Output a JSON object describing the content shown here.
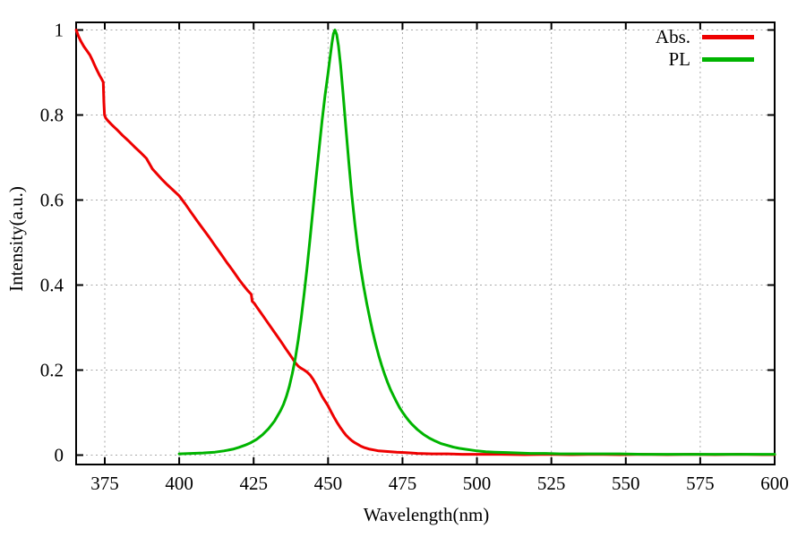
{
  "figure": {
    "background": "#ffffff",
    "axes": {
      "xlabel": "Wavelength(nm)",
      "ylabel": "Intensity(a.u.)"
    },
    "legend": {
      "entries": [
        {
          "label": "Abs.",
          "color": "#ee0000"
        },
        {
          "label": "PL",
          "color": "#00b400"
        }
      ]
    },
    "grid_color": "#a8a8a8",
    "border_color": "#000000"
  },
  "chart_data": {
    "type": "line",
    "title": "",
    "xlabel": "Wavelength(nm)",
    "ylabel": "Intensity(a.u.)",
    "xlim": [
      365.4,
      600
    ],
    "ylim": [
      0,
      1
    ],
    "grid": true,
    "legend_position": "top-right-inside",
    "xticks": {
      "values": [
        375,
        400,
        425,
        450,
        475,
        500,
        525,
        550,
        575,
        600
      ],
      "labels": [
        "375",
        "400",
        "425",
        "450",
        "475",
        "500",
        "525",
        "550",
        "575",
        "600"
      ]
    },
    "yticks": {
      "values": [
        0,
        0.2,
        0.4,
        0.6,
        0.8,
        1
      ],
      "labels": [
        "0",
        "0.2",
        "0.4",
        "0.6",
        "0.8",
        "1"
      ]
    },
    "series": [
      {
        "name": "Abs.",
        "color": "#ee0000",
        "points": [
          [
            365.4,
            1.0
          ],
          [
            366.2,
            0.985
          ],
          [
            367,
            0.973
          ],
          [
            368,
            0.961
          ],
          [
            369,
            0.951
          ],
          [
            370,
            0.941
          ],
          [
            370.8,
            0.93
          ],
          [
            371.6,
            0.917
          ],
          [
            372.4,
            0.905
          ],
          [
            373.2,
            0.894
          ],
          [
            374.0,
            0.884
          ],
          [
            374.5,
            0.877
          ],
          [
            374.7,
            0.83
          ],
          [
            374.9,
            0.8
          ],
          [
            375.3,
            0.793
          ],
          [
            376,
            0.787
          ],
          [
            377.5,
            0.776
          ],
          [
            379,
            0.766
          ],
          [
            381,
            0.752
          ],
          [
            383,
            0.739
          ],
          [
            385,
            0.725
          ],
          [
            387,
            0.712
          ],
          [
            389,
            0.698
          ],
          [
            391,
            0.673
          ],
          [
            394,
            0.65
          ],
          [
            396,
            0.636
          ],
          [
            398,
            0.623
          ],
          [
            400,
            0.61
          ],
          [
            402,
            0.591
          ],
          [
            404,
            0.571
          ],
          [
            406,
            0.551
          ],
          [
            408,
            0.532
          ],
          [
            410,
            0.513
          ],
          [
            412,
            0.493
          ],
          [
            414,
            0.473
          ],
          [
            416,
            0.453
          ],
          [
            418,
            0.434
          ],
          [
            420,
            0.414
          ],
          [
            421.5,
            0.4
          ],
          [
            423,
            0.387
          ],
          [
            424.2,
            0.378
          ],
          [
            424.5,
            0.362
          ],
          [
            425.2,
            0.357
          ],
          [
            426,
            0.349
          ],
          [
            427,
            0.339
          ],
          [
            428,
            0.329
          ],
          [
            430,
            0.309
          ],
          [
            432,
            0.289
          ],
          [
            434,
            0.269
          ],
          [
            436,
            0.248
          ],
          [
            437,
            0.238
          ],
          [
            438,
            0.228
          ],
          [
            439,
            0.217
          ],
          [
            440,
            0.209
          ],
          [
            441,
            0.204
          ],
          [
            442,
            0.2
          ],
          [
            443,
            0.195
          ],
          [
            444,
            0.188
          ],
          [
            445,
            0.178
          ],
          [
            446,
            0.166
          ],
          [
            447,
            0.152
          ],
          [
            448,
            0.138
          ],
          [
            449,
            0.127
          ],
          [
            450,
            0.116
          ],
          [
            451,
            0.102
          ],
          [
            452,
            0.089
          ],
          [
            453,
            0.077
          ],
          [
            454,
            0.066
          ],
          [
            455,
            0.056
          ],
          [
            456,
            0.047
          ],
          [
            457,
            0.04
          ],
          [
            458,
            0.034
          ],
          [
            459,
            0.029
          ],
          [
            460,
            0.025
          ],
          [
            461,
            0.021
          ],
          [
            462,
            0.018
          ],
          [
            463,
            0.016
          ],
          [
            464,
            0.014
          ],
          [
            465.5,
            0.012
          ],
          [
            467,
            0.01
          ],
          [
            469,
            0.009
          ],
          [
            471,
            0.008
          ],
          [
            473,
            0.007
          ],
          [
            475.5,
            0.006
          ],
          [
            478,
            0.005
          ],
          [
            480,
            0.004
          ],
          [
            485,
            0.003
          ],
          [
            490,
            0.003
          ],
          [
            495,
            0.002
          ],
          [
            500,
            0.002
          ],
          [
            508,
            0.002
          ],
          [
            516,
            0.001
          ],
          [
            524,
            0.002
          ],
          [
            532,
            0.001
          ],
          [
            540,
            0.002
          ],
          [
            548,
            0.001
          ],
          [
            556,
            0.002
          ],
          [
            564,
            0.001
          ],
          [
            572,
            0.002
          ],
          [
            580,
            0.001
          ],
          [
            588,
            0.002
          ],
          [
            596,
            0.001
          ],
          [
            600,
            0.001
          ]
        ]
      },
      {
        "name": "PL",
        "color": "#00b400",
        "points": [
          [
            400,
            0.003
          ],
          [
            404,
            0.004
          ],
          [
            408,
            0.005
          ],
          [
            412,
            0.007
          ],
          [
            415,
            0.01
          ],
          [
            418,
            0.014
          ],
          [
            420,
            0.018
          ],
          [
            422,
            0.023
          ],
          [
            424,
            0.029
          ],
          [
            426,
            0.037
          ],
          [
            428,
            0.048
          ],
          [
            430,
            0.062
          ],
          [
            432,
            0.08
          ],
          [
            434,
            0.104
          ],
          [
            435,
            0.119
          ],
          [
            436,
            0.138
          ],
          [
            437,
            0.162
          ],
          [
            438,
            0.192
          ],
          [
            439,
            0.228
          ],
          [
            440,
            0.272
          ],
          [
            441,
            0.323
          ],
          [
            442,
            0.381
          ],
          [
            443,
            0.445
          ],
          [
            444,
            0.513
          ],
          [
            445,
            0.583
          ],
          [
            446,
            0.653
          ],
          [
            447,
            0.722
          ],
          [
            448,
            0.788
          ],
          [
            449,
            0.847
          ],
          [
            450,
            0.898
          ],
          [
            450.7,
            0.938
          ],
          [
            451.3,
            0.97
          ],
          [
            451.8,
            0.991
          ],
          [
            452.3,
            1.0
          ],
          [
            452.9,
            0.989
          ],
          [
            453.5,
            0.962
          ],
          [
            454.2,
            0.917
          ],
          [
            455,
            0.852
          ],
          [
            456,
            0.768
          ],
          [
            457,
            0.686
          ],
          [
            458,
            0.61
          ],
          [
            459,
            0.543
          ],
          [
            460,
            0.485
          ],
          [
            461,
            0.437
          ],
          [
            462,
            0.395
          ],
          [
            463,
            0.356
          ],
          [
            464,
            0.322
          ],
          [
            465,
            0.29
          ],
          [
            466,
            0.261
          ],
          [
            467,
            0.235
          ],
          [
            468,
            0.211
          ],
          [
            469,
            0.19
          ],
          [
            470,
            0.171
          ],
          [
            471,
            0.154
          ],
          [
            472,
            0.139
          ],
          [
            473,
            0.125
          ],
          [
            474,
            0.112
          ],
          [
            475,
            0.101
          ],
          [
            476,
            0.091
          ],
          [
            477,
            0.082
          ],
          [
            478,
            0.074
          ],
          [
            480,
            0.06
          ],
          [
            482,
            0.049
          ],
          [
            484,
            0.04
          ],
          [
            486,
            0.033
          ],
          [
            488,
            0.027
          ],
          [
            490,
            0.023
          ],
          [
            492,
            0.019
          ],
          [
            494,
            0.016
          ],
          [
            496,
            0.014
          ],
          [
            498,
            0.012
          ],
          [
            500,
            0.01
          ],
          [
            503,
            0.008
          ],
          [
            506,
            0.007
          ],
          [
            510,
            0.006
          ],
          [
            514,
            0.005
          ],
          [
            518,
            0.004
          ],
          [
            523,
            0.004
          ],
          [
            528,
            0.003
          ],
          [
            534,
            0.003
          ],
          [
            540,
            0.003
          ],
          [
            548,
            0.003
          ],
          [
            556,
            0.002
          ],
          [
            565,
            0.002
          ],
          [
            575,
            0.002
          ],
          [
            585,
            0.002
          ],
          [
            600,
            0.002
          ]
        ]
      }
    ]
  }
}
